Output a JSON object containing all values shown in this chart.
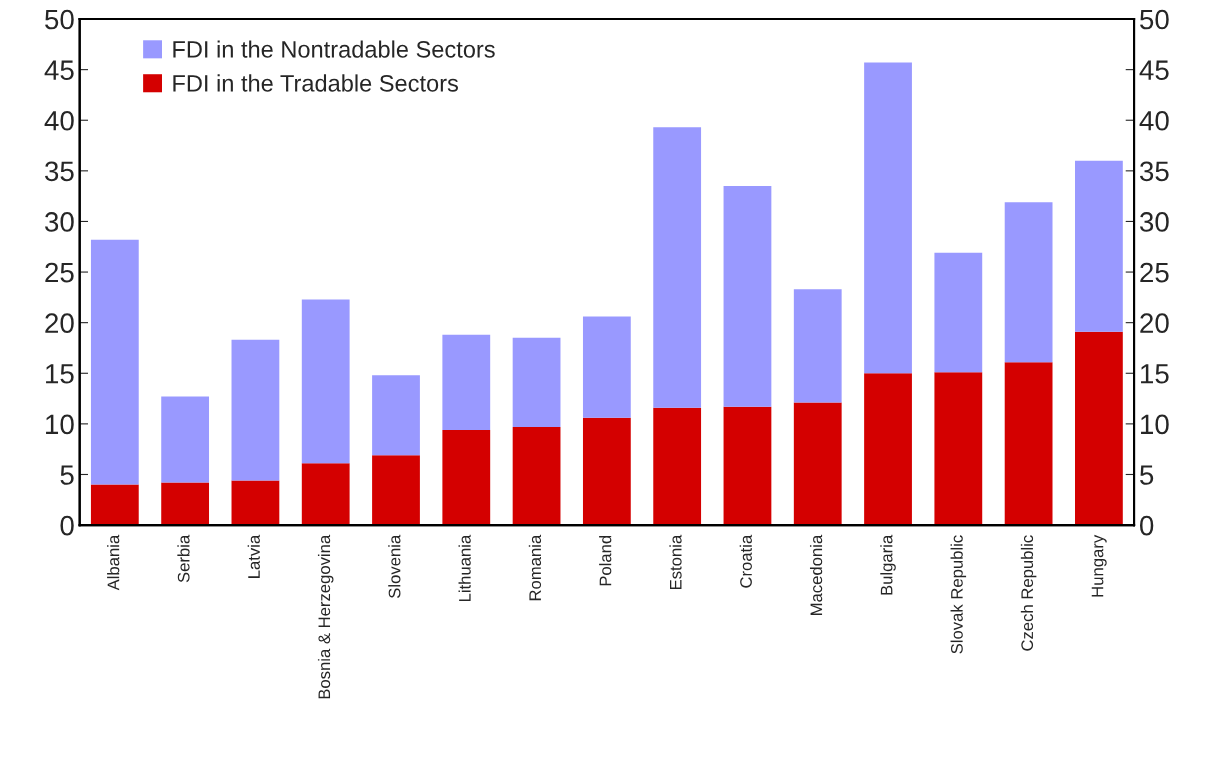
{
  "chart_data": {
    "type": "bar",
    "stacked": true,
    "categories": [
      "Albania",
      "Serbia",
      "Latvia",
      "Bosnia & Herzegovina",
      "Slovenia",
      "Lithuania",
      "Romania",
      "Poland",
      "Estonia",
      "Croatia",
      "Macedonia",
      "Bulgaria",
      "Slovak Republic",
      "Czech Republic",
      "Hungary"
    ],
    "series": [
      {
        "name": "FDI in the Tradable Sectors",
        "color": "#d40000",
        "values": [
          4.0,
          4.2,
          4.4,
          6.1,
          6.9,
          9.4,
          9.7,
          10.6,
          11.6,
          11.7,
          12.1,
          15.0,
          15.1,
          16.1,
          19.1
        ]
      },
      {
        "name": "FDI in the Nontradable Sectors",
        "color": "#9999ff",
        "values": [
          24.2,
          8.5,
          13.9,
          16.2,
          7.9,
          9.4,
          8.8,
          10.0,
          27.7,
          21.8,
          11.2,
          30.7,
          11.8,
          15.8,
          16.9
        ]
      }
    ],
    "ylim": [
      0,
      50
    ],
    "yticks": [
      0,
      5,
      10,
      15,
      20,
      25,
      30,
      35,
      40,
      45,
      50
    ],
    "y2lim": [
      0,
      50
    ],
    "y2ticks": [
      0,
      5,
      10,
      15,
      20,
      25,
      30,
      35,
      40,
      45,
      50
    ],
    "grid": false,
    "legend": "top left"
  }
}
